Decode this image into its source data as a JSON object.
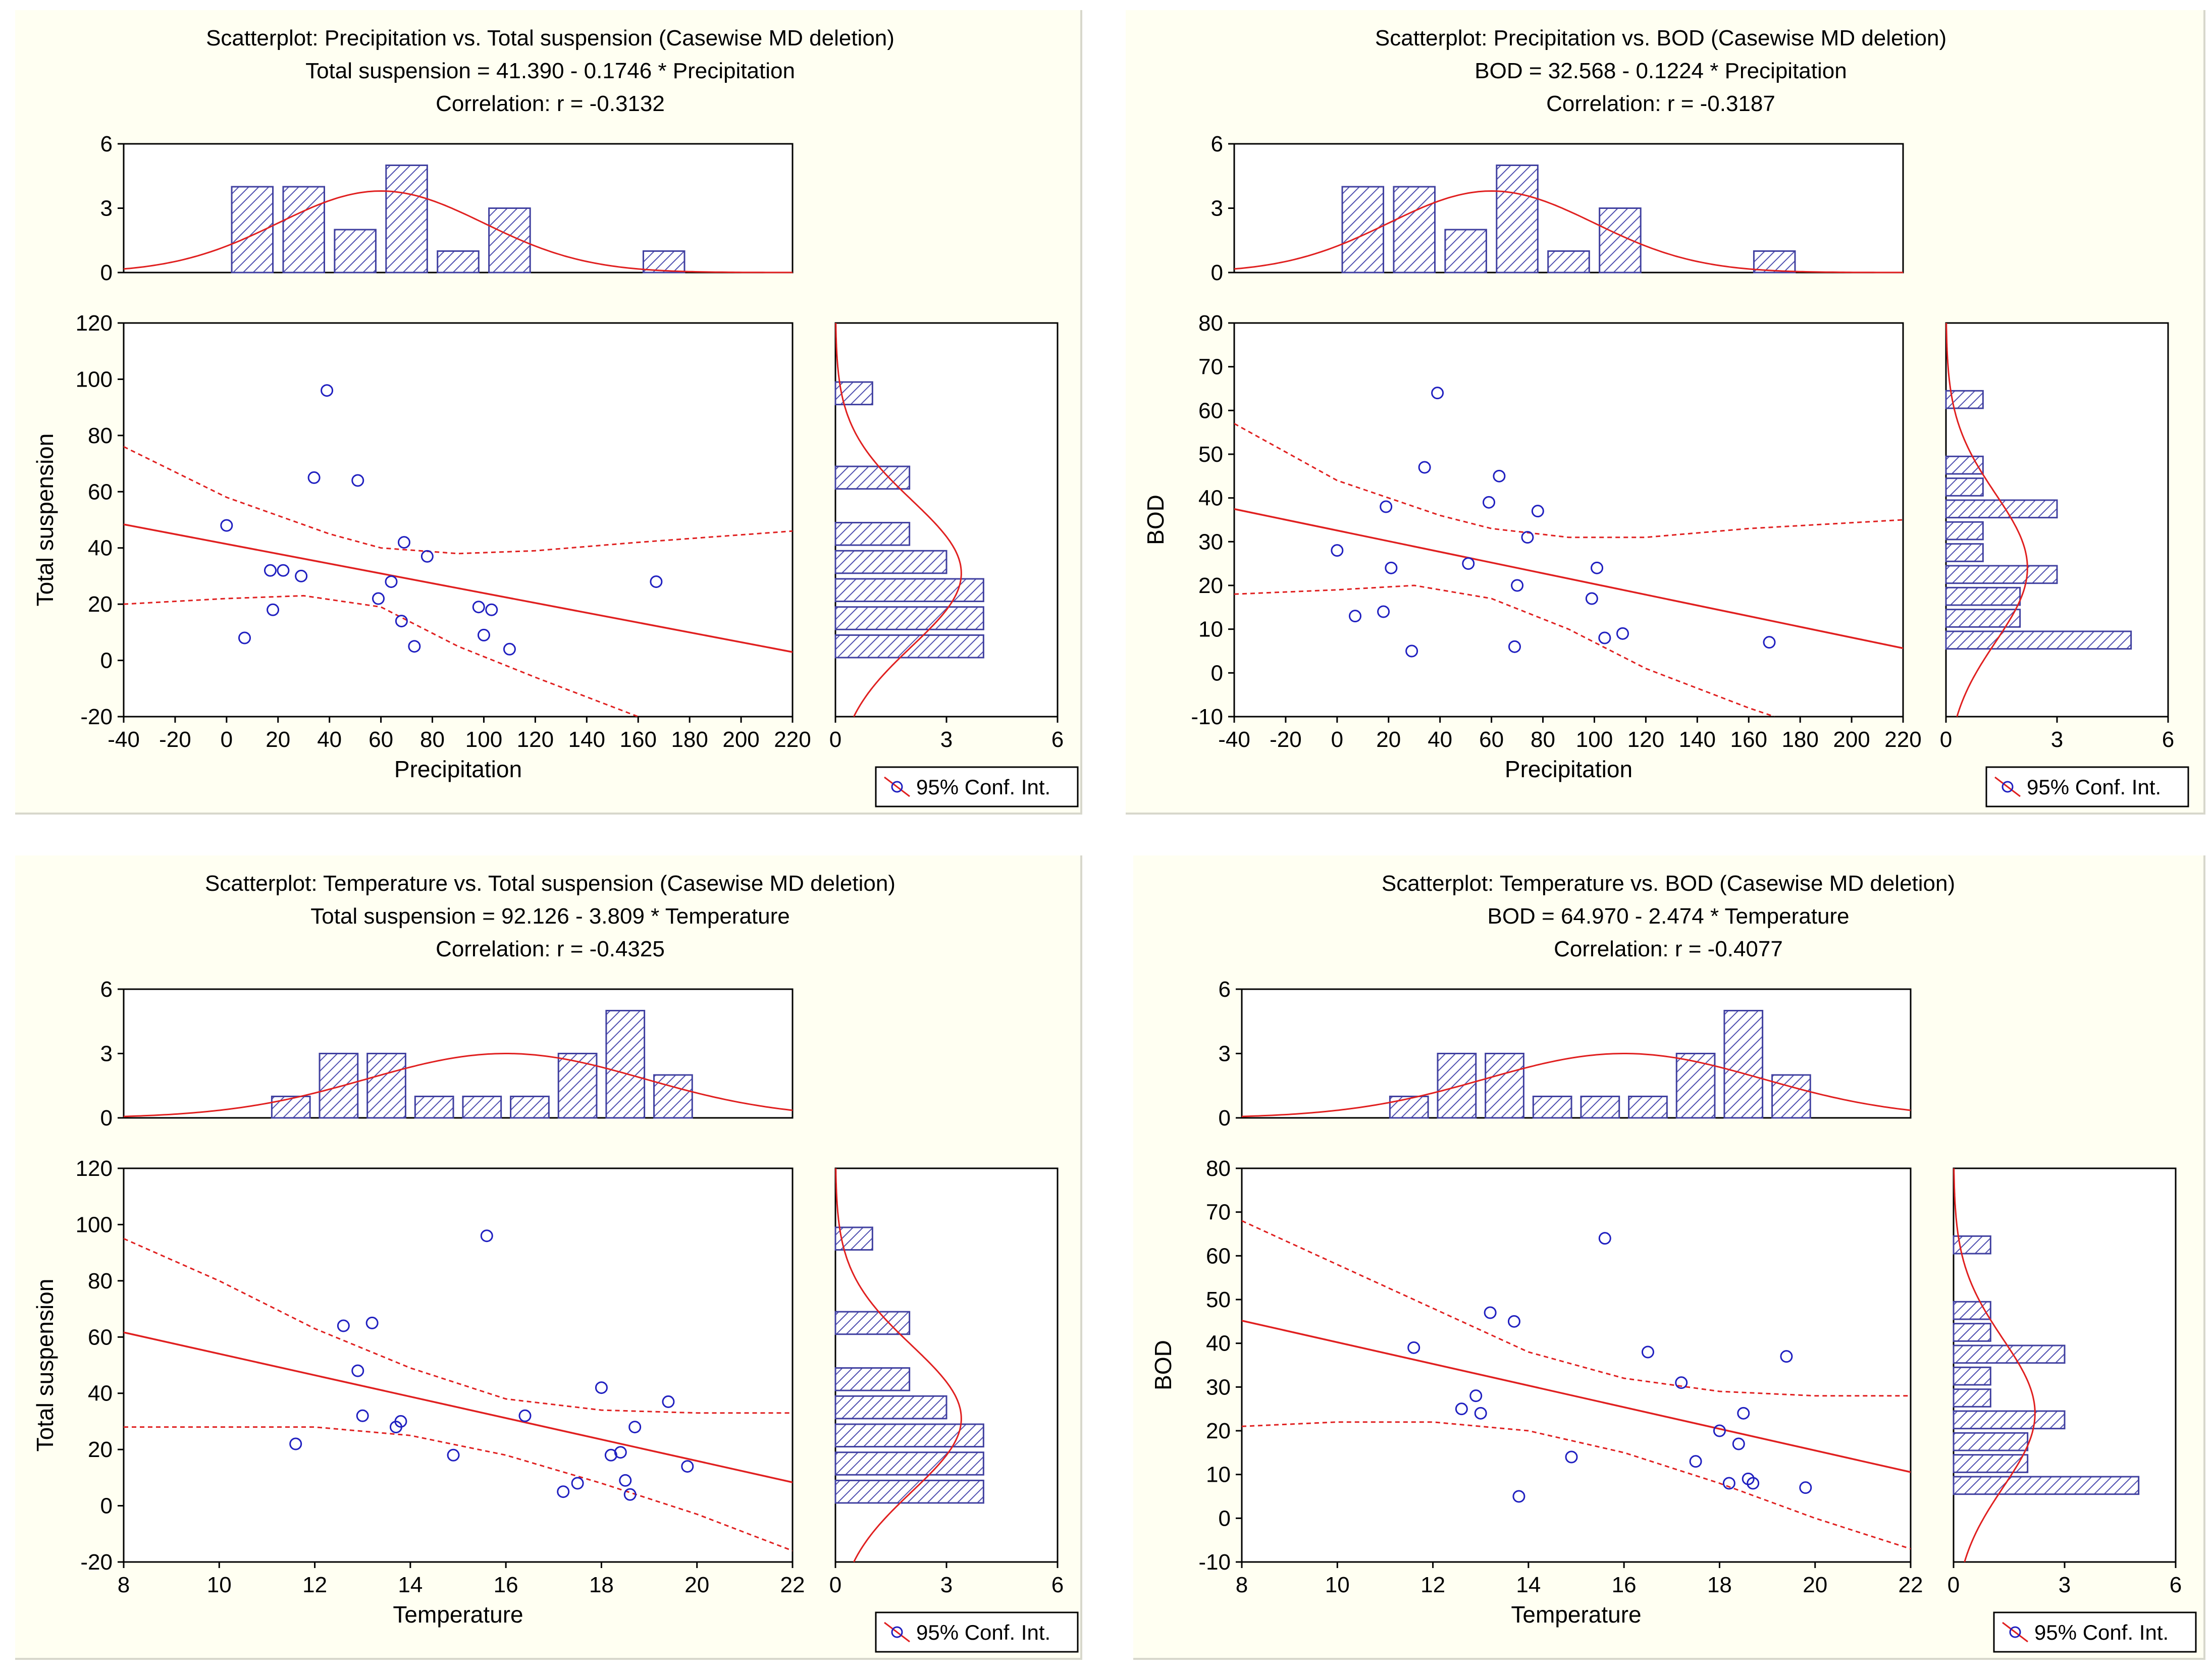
{
  "legend_label": "95% Conf. Int.",
  "colors": {
    "points": "#2020c0",
    "fit": "#e02020",
    "bars": "#4040a0",
    "hatch": "#5050b0",
    "bg": "#fffff2",
    "axis": "#000000"
  },
  "chart_data": [
    {
      "type": "scatter",
      "title": "Scatterplot: Precipitation vs. Total suspension (Casewise MD deletion)",
      "equation": "Total suspension = 41.390 - 0.1746  * Precipitation",
      "correlation": "Correlation: r =   -0.3132",
      "xlabel": "Precipitation",
      "ylabel": "Total suspension",
      "xlim": [
        -40,
        220
      ],
      "ylim": [
        -20,
        120
      ],
      "xticks": [
        "-40",
        "-20",
        "0",
        "20",
        "40",
        "60",
        "80",
        "100",
        "120",
        "140",
        "160",
        "180",
        "200",
        "220"
      ],
      "yticks": [
        "-20",
        "0",
        "20",
        "40",
        "60",
        "80",
        "100",
        "120"
      ],
      "fit": {
        "intercept": 41.39,
        "slope": -0.1746
      },
      "ci_upper": [
        [
          -40,
          76
        ],
        [
          0,
          58
        ],
        [
          40,
          45
        ],
        [
          60,
          40
        ],
        [
          90,
          38
        ],
        [
          120,
          39
        ],
        [
          160,
          42
        ],
        [
          220,
          46
        ]
      ],
      "ci_lower": [
        [
          -40,
          20
        ],
        [
          0,
          22
        ],
        [
          30,
          23
        ],
        [
          60,
          19
        ],
        [
          90,
          5
        ],
        [
          120,
          -6
        ],
        [
          160,
          -20
        ]
      ],
      "points": [
        [
          0,
          48
        ],
        [
          7,
          8
        ],
        [
          17,
          32
        ],
        [
          18,
          18
        ],
        [
          22,
          32
        ],
        [
          29,
          30
        ],
        [
          34,
          65
        ],
        [
          39,
          96
        ],
        [
          51,
          64
        ],
        [
          59,
          22
        ],
        [
          64,
          28
        ],
        [
          68,
          14
        ],
        [
          69,
          42
        ],
        [
          73,
          5
        ],
        [
          78,
          37
        ],
        [
          98,
          19
        ],
        [
          100,
          9
        ],
        [
          103,
          18
        ],
        [
          110,
          4
        ],
        [
          167,
          28
        ]
      ],
      "top_hist": {
        "yticks": [
          "0",
          "3",
          "6"
        ],
        "ylim": [
          0,
          6
        ],
        "bin_width": 20,
        "bins": [
          {
            "x": 10,
            "count": 4
          },
          {
            "x": 30,
            "count": 4
          },
          {
            "x": 50,
            "count": 2
          },
          {
            "x": 70,
            "count": 5
          },
          {
            "x": 90,
            "count": 1
          },
          {
            "x": 110,
            "count": 3
          },
          {
            "x": 170,
            "count": 1
          }
        ],
        "curve": {
          "mean": 60,
          "sd": 40,
          "peak": 3.8
        }
      },
      "side_hist": {
        "xticks": [
          "0",
          "3",
          "6"
        ],
        "xlim": [
          0,
          6
        ],
        "bin_width": 10,
        "bins": [
          {
            "y": 95,
            "count": 1
          },
          {
            "y": 65,
            "count": 2
          },
          {
            "y": 45,
            "count": 2
          },
          {
            "y": 35,
            "count": 3
          },
          {
            "y": 25,
            "count": 4
          },
          {
            "y": 15,
            "count": 4
          },
          {
            "y": 5,
            "count": 4
          }
        ],
        "curve": {
          "mean": 31,
          "sd": 26,
          "peak": 3.4
        }
      }
    },
    {
      "type": "scatter",
      "title": "Scatterplot: Precipitation vs. BOD      (Casewise MD deletion)",
      "equation": "BOD       = 32.568 - 0.1224  * Precipitation",
      "correlation": "Correlation: r =   -0.3187",
      "xlabel": "Precipitation",
      "ylabel": "BOD",
      "xlim": [
        -40,
        220
      ],
      "ylim": [
        -10,
        80
      ],
      "xticks": [
        "-40",
        "-20",
        "0",
        "20",
        "40",
        "60",
        "80",
        "100",
        "120",
        "140",
        "160",
        "180",
        "200",
        "220"
      ],
      "yticks": [
        "-10",
        "0",
        "10",
        "20",
        "30",
        "40",
        "50",
        "60",
        "70",
        "80"
      ],
      "fit": {
        "intercept": 32.568,
        "slope": -0.1224
      },
      "ci_upper": [
        [
          -40,
          57
        ],
        [
          0,
          44
        ],
        [
          40,
          36
        ],
        [
          60,
          33
        ],
        [
          90,
          31
        ],
        [
          120,
          31
        ],
        [
          160,
          33
        ],
        [
          220,
          35
        ]
      ],
      "ci_lower": [
        [
          -40,
          18
        ],
        [
          0,
          19
        ],
        [
          30,
          20
        ],
        [
          60,
          17
        ],
        [
          90,
          10
        ],
        [
          120,
          1
        ],
        [
          160,
          -8
        ],
        [
          170,
          -10
        ]
      ],
      "points": [
        [
          0,
          28
        ],
        [
          7,
          13
        ],
        [
          18,
          14
        ],
        [
          19,
          38
        ],
        [
          21,
          24
        ],
        [
          29,
          5
        ],
        [
          34,
          47
        ],
        [
          39,
          64
        ],
        [
          51,
          25
        ],
        [
          59,
          39
        ],
        [
          63,
          45
        ],
        [
          69,
          6
        ],
        [
          70,
          20
        ],
        [
          74,
          31
        ],
        [
          78,
          37
        ],
        [
          99,
          17
        ],
        [
          101,
          24
        ],
        [
          104,
          8
        ],
        [
          111,
          9
        ],
        [
          168,
          7
        ]
      ],
      "top_hist": {
        "yticks": [
          "0",
          "3",
          "6"
        ],
        "ylim": [
          0,
          6
        ],
        "bin_width": 20,
        "bins": [
          {
            "x": 10,
            "count": 4
          },
          {
            "x": 30,
            "count": 4
          },
          {
            "x": 50,
            "count": 2
          },
          {
            "x": 70,
            "count": 5
          },
          {
            "x": 90,
            "count": 1
          },
          {
            "x": 110,
            "count": 3
          },
          {
            "x": 170,
            "count": 1
          }
        ],
        "curve": {
          "mean": 60,
          "sd": 40,
          "peak": 3.8
        }
      },
      "side_hist": {
        "xticks": [
          "0",
          "3",
          "6"
        ],
        "xlim": [
          0,
          6
        ],
        "bin_width": 5,
        "bins": [
          {
            "y": 62.5,
            "count": 1
          },
          {
            "y": 47.5,
            "count": 1
          },
          {
            "y": 42.5,
            "count": 1
          },
          {
            "y": 37.5,
            "count": 3
          },
          {
            "y": 32.5,
            "count": 1
          },
          {
            "y": 27.5,
            "count": 1
          },
          {
            "y": 22.5,
            "count": 3
          },
          {
            "y": 17.5,
            "count": 2
          },
          {
            "y": 12.5,
            "count": 2
          },
          {
            "y": 7.5,
            "count": 5
          }
        ],
        "curve": {
          "mean": 24,
          "sd": 17,
          "peak": 2.2
        }
      }
    },
    {
      "type": "scatter",
      "title": "Scatterplot: Temperature vs. Total suspension (Casewise MD deletion)",
      "equation": "Total suspension = 92.126 - 3.809  * Temperature",
      "correlation": "Correlation: r =   -0.4325",
      "xlabel": "Temperature",
      "ylabel": "Total suspension",
      "xlim": [
        8,
        22
      ],
      "ylim": [
        -20,
        120
      ],
      "xticks": [
        "8",
        "10",
        "12",
        "14",
        "16",
        "18",
        "20",
        "22"
      ],
      "yticks": [
        "-20",
        "0",
        "20",
        "40",
        "60",
        "80",
        "100",
        "120"
      ],
      "fit": {
        "intercept": 92.126,
        "slope": -3.809
      },
      "ci_upper": [
        [
          8,
          95
        ],
        [
          10,
          80
        ],
        [
          12,
          63
        ],
        [
          14,
          49
        ],
        [
          16,
          38
        ],
        [
          18,
          34
        ],
        [
          20,
          33
        ],
        [
          22,
          33
        ]
      ],
      "ci_lower": [
        [
          8,
          28
        ],
        [
          10,
          28
        ],
        [
          12,
          28
        ],
        [
          14,
          25
        ],
        [
          16,
          18
        ],
        [
          18,
          8
        ],
        [
          20,
          -3
        ],
        [
          22,
          -16
        ]
      ],
      "points": [
        [
          11.6,
          22
        ],
        [
          12.6,
          64
        ],
        [
          12.9,
          48
        ],
        [
          13.0,
          32
        ],
        [
          13.2,
          65
        ],
        [
          13.7,
          28
        ],
        [
          13.8,
          30
        ],
        [
          14.9,
          18
        ],
        [
          15.6,
          96
        ],
        [
          16.4,
          32
        ],
        [
          17.2,
          5
        ],
        [
          17.5,
          8
        ],
        [
          18.0,
          42
        ],
        [
          18.2,
          18
        ],
        [
          18.4,
          19
        ],
        [
          18.5,
          9
        ],
        [
          18.6,
          4
        ],
        [
          18.7,
          28
        ],
        [
          19.4,
          37
        ],
        [
          19.8,
          14
        ]
      ],
      "top_hist": {
        "yticks": [
          "0",
          "3",
          "6"
        ],
        "ylim": [
          0,
          6
        ],
        "bin_width": 1,
        "bins": [
          {
            "x": 11.5,
            "count": 1
          },
          {
            "x": 12.5,
            "count": 3
          },
          {
            "x": 13.5,
            "count": 3
          },
          {
            "x": 14.5,
            "count": 1
          },
          {
            "x": 15.5,
            "count": 1
          },
          {
            "x": 16.5,
            "count": 1
          },
          {
            "x": 17.5,
            "count": 3
          },
          {
            "x": 18.5,
            "count": 5
          },
          {
            "x": 19.5,
            "count": 2
          }
        ],
        "curve": {
          "mean": 16,
          "sd": 2.9,
          "peak": 3.0
        }
      },
      "side_hist": {
        "xticks": [
          "0",
          "3",
          "6"
        ],
        "xlim": [
          0,
          6
        ],
        "bin_width": 10,
        "bins": [
          {
            "y": 95,
            "count": 1
          },
          {
            "y": 65,
            "count": 2
          },
          {
            "y": 45,
            "count": 2
          },
          {
            "y": 35,
            "count": 3
          },
          {
            "y": 25,
            "count": 4
          },
          {
            "y": 15,
            "count": 4
          },
          {
            "y": 5,
            "count": 4
          }
        ],
        "curve": {
          "mean": 31,
          "sd": 26,
          "peak": 3.4
        }
      }
    },
    {
      "type": "scatter",
      "title": "Scatterplot: Temperature vs. BOD      (Casewise MD deletion)",
      "equation": "BOD       = 64.970 - 2.474  * Temperature",
      "correlation": "Correlation: r =   -0.4077",
      "xlabel": "Temperature",
      "ylabel": "BOD",
      "xlim": [
        8,
        22
      ],
      "ylim": [
        -10,
        80
      ],
      "xticks": [
        "8",
        "10",
        "12",
        "14",
        "16",
        "18",
        "20",
        "22"
      ],
      "yticks": [
        "-10",
        "0",
        "10",
        "20",
        "30",
        "40",
        "50",
        "60",
        "70",
        "80"
      ],
      "fit": {
        "intercept": 64.97,
        "slope": -2.474
      },
      "ci_upper": [
        [
          8,
          68
        ],
        [
          10,
          58
        ],
        [
          12,
          48
        ],
        [
          14,
          38
        ],
        [
          16,
          32
        ],
        [
          18,
          29
        ],
        [
          20,
          28
        ],
        [
          22,
          28
        ]
      ],
      "ci_lower": [
        [
          8,
          21
        ],
        [
          10,
          22
        ],
        [
          12,
          22
        ],
        [
          14,
          20
        ],
        [
          16,
          15
        ],
        [
          18,
          8
        ],
        [
          20,
          0
        ],
        [
          22,
          -7
        ]
      ],
      "points": [
        [
          11.6,
          39
        ],
        [
          12.6,
          25
        ],
        [
          12.9,
          28
        ],
        [
          13.0,
          24
        ],
        [
          13.2,
          47
        ],
        [
          13.7,
          45
        ],
        [
          13.8,
          5
        ],
        [
          14.9,
          14
        ],
        [
          15.6,
          64
        ],
        [
          16.5,
          38
        ],
        [
          17.2,
          31
        ],
        [
          17.5,
          13
        ],
        [
          18.0,
          20
        ],
        [
          18.2,
          8
        ],
        [
          18.4,
          17
        ],
        [
          18.5,
          24
        ],
        [
          18.6,
          9
        ],
        [
          18.7,
          8
        ],
        [
          19.4,
          37
        ],
        [
          19.8,
          7
        ]
      ],
      "top_hist": {
        "yticks": [
          "0",
          "3",
          "6"
        ],
        "ylim": [
          0,
          6
        ],
        "bin_width": 1,
        "bins": [
          {
            "x": 11.5,
            "count": 1
          },
          {
            "x": 12.5,
            "count": 3
          },
          {
            "x": 13.5,
            "count": 3
          },
          {
            "x": 14.5,
            "count": 1
          },
          {
            "x": 15.5,
            "count": 1
          },
          {
            "x": 16.5,
            "count": 1
          },
          {
            "x": 17.5,
            "count": 3
          },
          {
            "x": 18.5,
            "count": 5
          },
          {
            "x": 19.5,
            "count": 2
          }
        ],
        "curve": {
          "mean": 16,
          "sd": 2.9,
          "peak": 3.0
        }
      },
      "side_hist": {
        "xticks": [
          "0",
          "3",
          "6"
        ],
        "xlim": [
          0,
          6
        ],
        "bin_width": 5,
        "bins": [
          {
            "y": 62.5,
            "count": 1
          },
          {
            "y": 47.5,
            "count": 1
          },
          {
            "y": 42.5,
            "count": 1
          },
          {
            "y": 37.5,
            "count": 3
          },
          {
            "y": 32.5,
            "count": 1
          },
          {
            "y": 27.5,
            "count": 1
          },
          {
            "y": 22.5,
            "count": 3
          },
          {
            "y": 17.5,
            "count": 2
          },
          {
            "y": 12.5,
            "count": 2
          },
          {
            "y": 7.5,
            "count": 5
          }
        ],
        "curve": {
          "mean": 24,
          "sd": 17,
          "peak": 2.2
        }
      }
    }
  ]
}
